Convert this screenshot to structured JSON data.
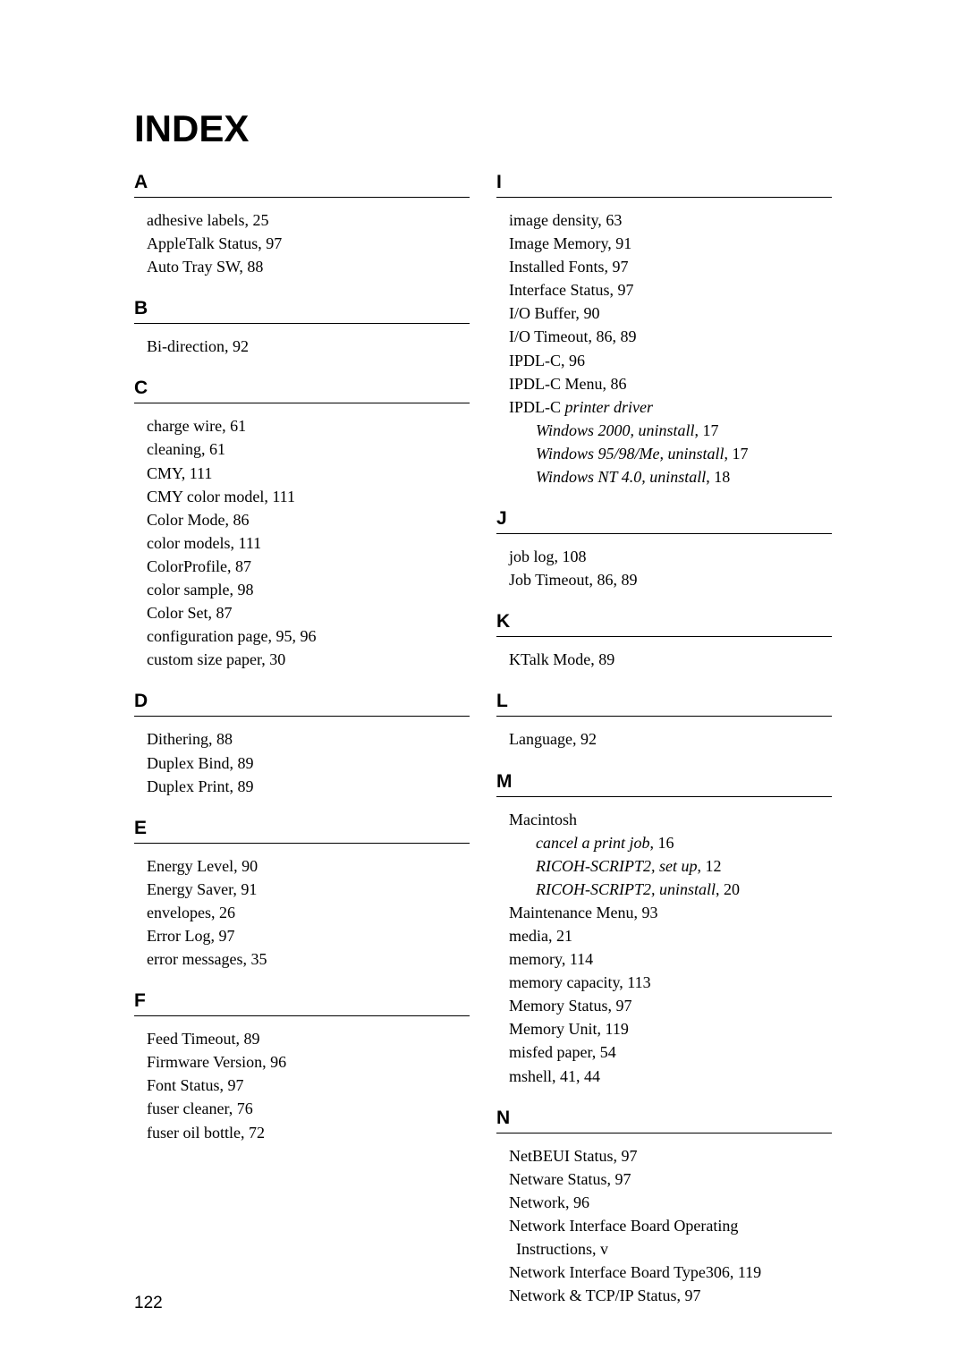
{
  "title": "INDEX",
  "pageNumber": "122",
  "leftColumn": [
    {
      "letter": "A",
      "entries": [
        {
          "text": "adhesive labels,",
          "page": "25"
        },
        {
          "text": "AppleTalk Status,",
          "page": "97"
        },
        {
          "text": "Auto Tray SW,",
          "page": "88"
        }
      ]
    },
    {
      "letter": "B",
      "entries": [
        {
          "text": "Bi-direction,",
          "page": "92"
        }
      ]
    },
    {
      "letter": "C",
      "entries": [
        {
          "text": "charge wire,",
          "page": "61"
        },
        {
          "text": "cleaning,",
          "page": "61"
        },
        {
          "text": "CMY,",
          "page": "111"
        },
        {
          "text": "CMY color model,",
          "page": "111"
        },
        {
          "text": "Color Mode,",
          "page": "86"
        },
        {
          "text": "color models,",
          "page": "111"
        },
        {
          "text": "ColorProfile,",
          "page": "87"
        },
        {
          "text": "color sample,",
          "page": "98"
        },
        {
          "text": "Color Set,",
          "page": "87"
        },
        {
          "text": "configuration page,",
          "page": "95, 96"
        },
        {
          "text": "custom size paper,",
          "page": "30"
        }
      ]
    },
    {
      "letter": "D",
      "entries": [
        {
          "text": "Dithering,",
          "page": "88"
        },
        {
          "text": "Duplex Bind,",
          "page": "89"
        },
        {
          "text": "Duplex Print,",
          "page": "89"
        }
      ]
    },
    {
      "letter": "E",
      "entries": [
        {
          "text": "Energy Level,",
          "page": "90"
        },
        {
          "text": "Energy Saver,",
          "page": "91"
        },
        {
          "text": "envelopes,",
          "page": "26"
        },
        {
          "text": "Error Log,",
          "page": "97"
        },
        {
          "text": "error messages,",
          "page": "35"
        }
      ]
    },
    {
      "letter": "F",
      "entries": [
        {
          "text": "Feed Timeout,",
          "page": "89"
        },
        {
          "text": "Firmware Version,",
          "page": "96"
        },
        {
          "text": "Font Status,",
          "page": "97"
        },
        {
          "text": "fuser cleaner,",
          "page": "76"
        },
        {
          "text": "fuser oil bottle,",
          "page": "72"
        }
      ]
    }
  ],
  "rightColumn": [
    {
      "letter": "I",
      "entries": [
        {
          "text": "image density,",
          "page": "63"
        },
        {
          "text": "Image Memory,",
          "page": "91"
        },
        {
          "text": "Installed Fonts,",
          "page": "97"
        },
        {
          "text": "Interface Status,",
          "page": "97"
        },
        {
          "text": "I/O Buffer,",
          "page": "90"
        },
        {
          "text": "I/O Timeout,",
          "page": "86, 89"
        },
        {
          "text": "IPDL-C,",
          "page": "96"
        },
        {
          "text": "IPDL-C Menu,",
          "page": "86"
        },
        {
          "text": "IPDL-C",
          "italicPart": " printer driver",
          "page": ""
        },
        {
          "subText": "Windows 2000, uninstall",
          "page": "17",
          "sub": true
        },
        {
          "subText": "Windows 95/98/Me, uninstall",
          "page": "17",
          "sub": true
        },
        {
          "subText": "Windows NT 4.0, uninstall",
          "page": "18",
          "sub": true
        }
      ]
    },
    {
      "letter": "J",
      "entries": [
        {
          "text": "job log,",
          "page": "108"
        },
        {
          "text": "Job Timeout,",
          "page": "86, 89"
        }
      ]
    },
    {
      "letter": "K",
      "entries": [
        {
          "text": "KTalk Mode,",
          "page": "89"
        }
      ]
    },
    {
      "letter": "L",
      "entries": [
        {
          "text": "Language,",
          "page": "92"
        }
      ]
    },
    {
      "letter": "M",
      "entries": [
        {
          "text": "Macintosh",
          "page": ""
        },
        {
          "subText": "cancel a print job",
          "page": "16",
          "sub": true
        },
        {
          "subText": "RICOH-SCRIPT2, set up",
          "page": "12",
          "sub": true
        },
        {
          "subText": "RICOH-SCRIPT2, uninstall",
          "page": "20",
          "sub": true
        },
        {
          "text": "Maintenance Menu,",
          "page": "93"
        },
        {
          "text": "media,",
          "page": "21"
        },
        {
          "text": "memory,",
          "page": "114"
        },
        {
          "text": "memory capacity,",
          "page": "113"
        },
        {
          "text": "Memory Status,",
          "page": "97"
        },
        {
          "text": "Memory Unit,",
          "page": "119"
        },
        {
          "text": "misfed paper,",
          "page": "54"
        },
        {
          "text": "mshell,",
          "page": "41, 44"
        }
      ]
    },
    {
      "letter": "N",
      "entries": [
        {
          "text": "NetBEUI Status,",
          "page": "97"
        },
        {
          "text": "Netware Status,",
          "page": "97"
        },
        {
          "text": "Network,",
          "page": "96"
        },
        {
          "text": "Network Interface Board Operating",
          "page": "",
          "continuation": true
        },
        {
          "text": "Instructions,",
          "page": "v",
          "hanging": true
        },
        {
          "text": "Network Interface Board Type306,",
          "page": "119"
        },
        {
          "text": "Network & TCP/IP Status,",
          "page": "97"
        }
      ]
    }
  ]
}
